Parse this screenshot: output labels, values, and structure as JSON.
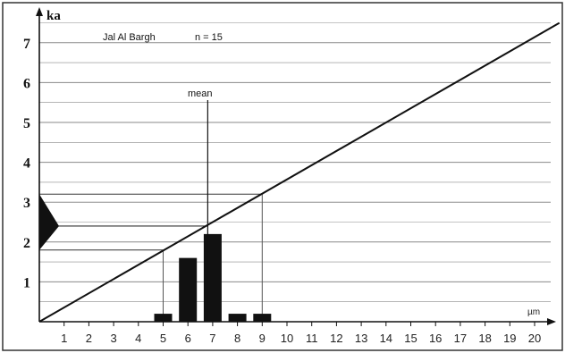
{
  "chart_data": {
    "type": "bar",
    "title": "Jal Al Bargh",
    "n_label": "n = 15",
    "ylabel": "ka",
    "xunit": "µm",
    "mean_label": "mean",
    "xlim": [
      0,
      21
    ],
    "ylim": [
      0,
      7.5
    ],
    "x_ticks": [
      1,
      2,
      3,
      4,
      5,
      6,
      7,
      8,
      9,
      10,
      11,
      12,
      13,
      14,
      15,
      16,
      17,
      18,
      19,
      20
    ],
    "y_ticks": [
      1,
      2,
      3,
      4,
      5,
      6,
      7
    ],
    "grid": true,
    "bars": [
      {
        "x": 5,
        "value": 0.2
      },
      {
        "x": 6,
        "value": 1.6
      },
      {
        "x": 7,
        "value": 2.2
      },
      {
        "x": 8,
        "value": 0.2
      },
      {
        "x": 9,
        "value": 0.2
      }
    ],
    "calibration_line": {
      "slope": 0.357,
      "from_x": 0,
      "to_x": 21
    },
    "mean": {
      "x": 6.8,
      "age": 2.4
    },
    "range": {
      "x_min": 5,
      "x_max": 9,
      "age_min": 1.8,
      "age_max": 3.2
    },
    "colors": {
      "ink": "#111111",
      "grid": "#8a8a8a",
      "background": "#ffffff"
    }
  }
}
